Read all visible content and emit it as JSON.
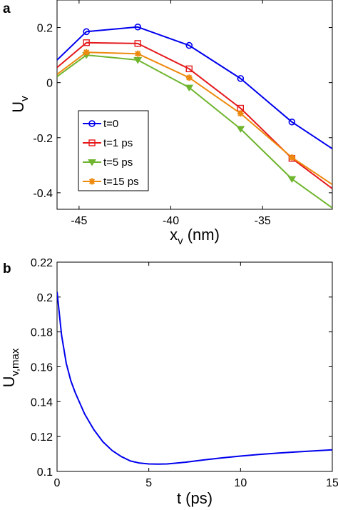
{
  "chart_data": [
    {
      "panel_label": "a",
      "type": "line",
      "xlabel": "x",
      "xlabel_sub": "v",
      "xlabel_unit": " (nm)",
      "ylabel": "U",
      "ylabel_sub": "v",
      "xlim": [
        -46.2,
        -31.2
      ],
      "ylim": [
        -0.46,
        0.3
      ],
      "xticks": [
        -45,
        -40,
        -35
      ],
      "xtick_labels": [
        "-45",
        "-40",
        "-35"
      ],
      "yticks": [
        0.2,
        0,
        -0.2,
        -0.4
      ],
      "ytick_labels": [
        "0.2",
        "0",
        "-0.2",
        "-0.4"
      ],
      "grid": false,
      "legend_position": "bottom-left",
      "series": [
        {
          "name": "t=0",
          "color": "#0000ee",
          "marker": "circle",
          "x": [
            -46.2,
            -44.6,
            -41.8,
            -39.0,
            -36.2,
            -33.4,
            -31.2
          ],
          "y": [
            0.082,
            0.185,
            0.202,
            0.135,
            0.015,
            -0.143,
            -0.24
          ]
        },
        {
          "name": "t=1 ps",
          "color": "#e41a1c",
          "marker": "square",
          "x": [
            -46.2,
            -44.6,
            -41.8,
            -39.0,
            -36.2,
            -33.4,
            -31.2
          ],
          "y": [
            0.055,
            0.145,
            0.142,
            0.05,
            -0.093,
            -0.275,
            -0.385
          ]
        },
        {
          "name": "t=5 ps",
          "color": "#6fb52e",
          "marker": "triangle-down",
          "x": [
            -46.2,
            -44.6,
            -41.8,
            -39.0,
            -36.2,
            -33.4,
            -31.2
          ],
          "y": [
            0.022,
            0.1,
            0.082,
            -0.018,
            -0.168,
            -0.35,
            -0.455
          ]
        },
        {
          "name": "t=15 ps",
          "color": "#ee8a0e",
          "marker": "asterisk",
          "x": [
            -46.2,
            -44.6,
            -41.8,
            -39.0,
            -36.2,
            -33.4,
            -31.2
          ],
          "y": [
            0.03,
            0.11,
            0.105,
            0.018,
            -0.112,
            -0.272,
            -0.37
          ]
        }
      ]
    },
    {
      "panel_label": "b",
      "type": "line",
      "xlabel": "t (ps)",
      "ylabel": "U",
      "ylabel_sub": "v,max",
      "xlim": [
        0,
        15
      ],
      "ylim": [
        0.1,
        0.22
      ],
      "xticks": [
        0,
        5,
        10,
        15
      ],
      "xtick_labels": [
        "0",
        "5",
        "10",
        "15"
      ],
      "yticks": [
        0.1,
        0.12,
        0.14,
        0.16,
        0.18,
        0.2,
        0.22
      ],
      "ytick_labels": [
        "0.1",
        "0.12",
        "0.14",
        "0.16",
        "0.18",
        "0.2",
        "0.22"
      ],
      "grid": false,
      "series": [
        {
          "color": "#0000ee",
          "x": [
            0,
            0.25,
            0.5,
            0.75,
            1,
            1.5,
            2,
            2.5,
            3,
            3.5,
            4,
            4.5,
            5,
            5.5,
            6,
            7,
            8,
            9,
            10,
            11,
            12,
            13,
            14,
            15
          ],
          "y": [
            0.203,
            0.178,
            0.162,
            0.152,
            0.145,
            0.133,
            0.124,
            0.117,
            0.112,
            0.1085,
            0.106,
            0.1048,
            0.1043,
            0.1042,
            0.1043,
            0.1053,
            0.1066,
            0.1078,
            0.1088,
            0.1097,
            0.1105,
            0.1112,
            0.1118,
            0.1124
          ]
        }
      ]
    }
  ]
}
